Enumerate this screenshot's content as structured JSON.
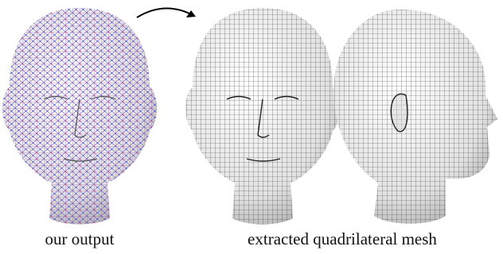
{
  "figure": {
    "captions": [
      "our output",
      "extracted quadrilateral mesh"
    ]
  }
}
